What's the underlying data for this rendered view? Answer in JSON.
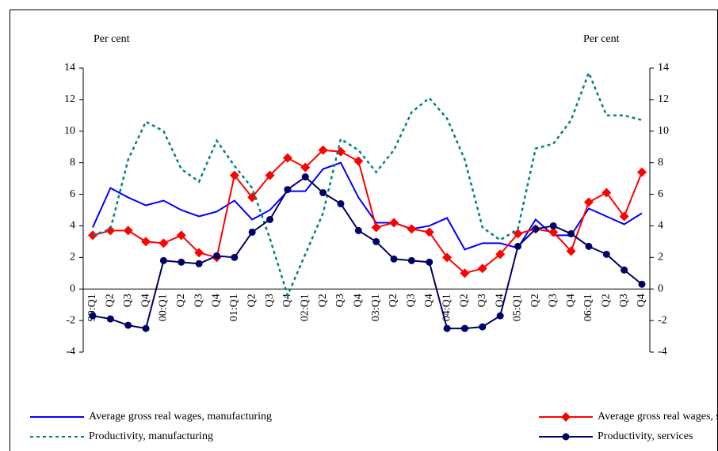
{
  "chart_data": {
    "type": "line",
    "y_label": "Per cent",
    "y2_label": "Per cent",
    "categories": [
      "99:Q1",
      "Q2",
      "Q3",
      "Q4",
      "00:Q1",
      "Q2",
      "Q3",
      "Q4",
      "01:Q1",
      "Q2",
      "Q3",
      "Q4",
      "02:Q1",
      "Q2",
      "Q3",
      "Q4",
      "03:Q1",
      "Q2",
      "Q3",
      "Q4",
      "04:Q1",
      "Q2",
      "Q3",
      "Q4",
      "05:Q1",
      "Q2",
      "Q3",
      "Q4",
      "06:Q1",
      "Q2",
      "Q3",
      "Q4"
    ],
    "ylim": [
      -4,
      14
    ],
    "yticks": [
      -4,
      -2,
      0,
      2,
      4,
      6,
      8,
      10,
      12,
      14
    ],
    "y2lim": [
      -4,
      14
    ],
    "y2ticks": [
      -4,
      -2,
      0,
      2,
      4,
      6,
      8,
      10,
      12,
      14
    ],
    "legend": "bottom",
    "series": [
      {
        "name": "Average gross real wages, manufacturing",
        "color": "#0000ff",
        "style": "solid",
        "marker": "none",
        "values": [
          3.9,
          6.4,
          5.8,
          5.3,
          5.6,
          5.0,
          4.6,
          4.9,
          5.6,
          4.4,
          5.0,
          6.2,
          6.2,
          7.6,
          8.0,
          5.8,
          4.2,
          4.2,
          3.8,
          4.0,
          4.5,
          2.5,
          2.9,
          2.9,
          2.6,
          4.4,
          3.4,
          3.4,
          5.1,
          4.6,
          4.1,
          4.8
        ]
      },
      {
        "name": "Average gross real wages, services",
        "color": "#ff0000",
        "style": "solid",
        "marker": "diamond",
        "values": [
          3.4,
          3.7,
          3.7,
          3.0,
          2.9,
          3.4,
          2.3,
          2.0,
          7.2,
          5.8,
          7.2,
          8.3,
          7.7,
          8.8,
          8.7,
          8.1,
          3.9,
          4.2,
          3.8,
          3.6,
          2.0,
          1.0,
          1.3,
          2.2,
          3.5,
          3.8,
          3.6,
          2.4,
          5.5,
          6.1,
          4.6,
          7.4
        ]
      },
      {
        "name": "Productivity, manufacturing",
        "color": "#008080",
        "style": "dotted",
        "marker": "none",
        "values": [
          3.4,
          3.8,
          8.2,
          10.6,
          10.0,
          7.6,
          6.8,
          9.4,
          7.8,
          6.4,
          3.2,
          -0.4,
          2.2,
          4.8,
          9.5,
          8.8,
          7.4,
          8.8,
          11.2,
          12.1,
          10.8,
          8.2,
          3.9,
          3.1,
          3.8,
          8.9,
          9.2,
          10.7,
          13.7,
          11.0,
          11.0,
          10.7
        ]
      },
      {
        "name": "Productivity, services",
        "color": "#000066",
        "style": "solid",
        "marker": "circle",
        "values": [
          -1.7,
          -1.9,
          -2.3,
          -2.5,
          1.8,
          1.7,
          1.6,
          2.1,
          2.0,
          3.6,
          4.4,
          6.3,
          7.1,
          6.1,
          5.4,
          3.7,
          3.0,
          1.9,
          1.8,
          1.7,
          -2.5,
          -2.5,
          -2.4,
          -1.7,
          2.7,
          3.8,
          4.0,
          3.5,
          2.7,
          2.2,
          1.2,
          0.3
        ]
      }
    ]
  }
}
